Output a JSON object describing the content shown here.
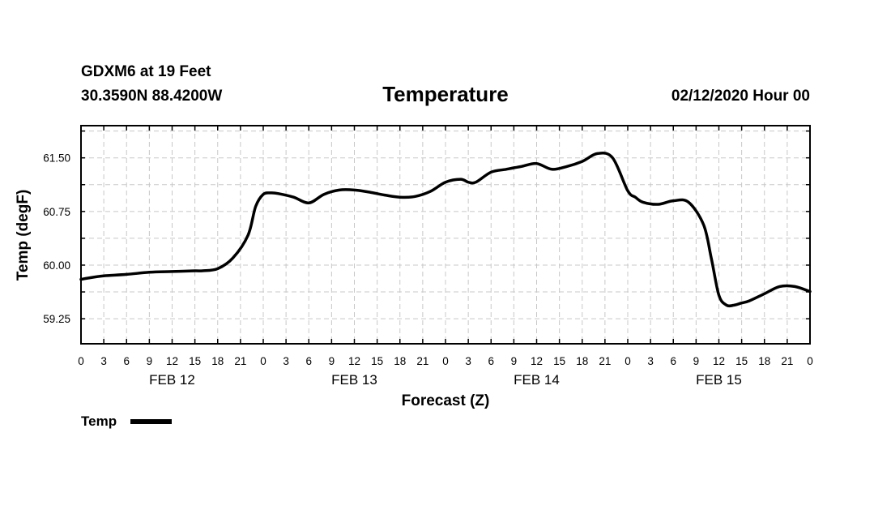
{
  "header": {
    "station": "GDXM6 at 19 Feet",
    "location": "30.3590N 88.4200W",
    "timestamp": "02/12/2020 Hour 00"
  },
  "chart_data": {
    "type": "line",
    "title": "Temperature",
    "xlabel": "Forecast (Z)",
    "ylabel": "Temp (degF)",
    "ylim": [
      58.9,
      61.95
    ],
    "xlim": [
      0,
      96
    ],
    "grid": true,
    "y_ticks": [
      "61.50",
      "60.75",
      "60.00",
      "59.25"
    ],
    "y_tick_values": [
      61.5,
      60.75,
      60.0,
      59.25
    ],
    "x_tick_labels": [
      "0",
      "3",
      "6",
      "9",
      "12",
      "15",
      "18",
      "21",
      "0",
      "3",
      "6",
      "9",
      "12",
      "15",
      "18",
      "21",
      "0",
      "3",
      "6",
      "9",
      "12",
      "15",
      "18",
      "21",
      "0",
      "3",
      "6",
      "9",
      "12",
      "15",
      "18",
      "21",
      "0"
    ],
    "day_labels": [
      "FEB 12",
      "FEB 13",
      "FEB 14",
      "FEB 15"
    ],
    "day_label_hours": [
      12,
      36,
      60,
      84
    ],
    "legend_position": "bottom-left",
    "series": [
      {
        "name": "Temp",
        "color": "#000000",
        "x": [
          0,
          1,
          3,
          6,
          9,
          12,
          15,
          16,
          18,
          20,
          22,
          23,
          24,
          25,
          26,
          28,
          30,
          32,
          34,
          36,
          38,
          40,
          42,
          44,
          46,
          48,
          50,
          51,
          52,
          54,
          56,
          58,
          60,
          62,
          64,
          66,
          68,
          70,
          72,
          73,
          74,
          76,
          78,
          80,
          82,
          83,
          84,
          85,
          86,
          87,
          88,
          90,
          92,
          94,
          96
        ],
        "values": [
          59.8,
          59.82,
          59.85,
          59.87,
          59.9,
          59.91,
          59.92,
          59.92,
          59.95,
          60.1,
          60.42,
          60.82,
          60.99,
          61.01,
          61.0,
          60.95,
          60.87,
          60.99,
          61.05,
          61.05,
          61.02,
          60.98,
          60.95,
          60.96,
          61.03,
          61.16,
          61.2,
          61.16,
          61.16,
          61.3,
          61.34,
          61.38,
          61.42,
          61.34,
          61.38,
          61.45,
          61.56,
          61.5,
          61.04,
          60.95,
          60.88,
          60.85,
          60.9,
          60.88,
          60.56,
          60.1,
          59.58,
          59.44,
          59.44,
          59.47,
          59.5,
          59.6,
          59.7,
          59.7,
          59.63
        ]
      }
    ]
  }
}
